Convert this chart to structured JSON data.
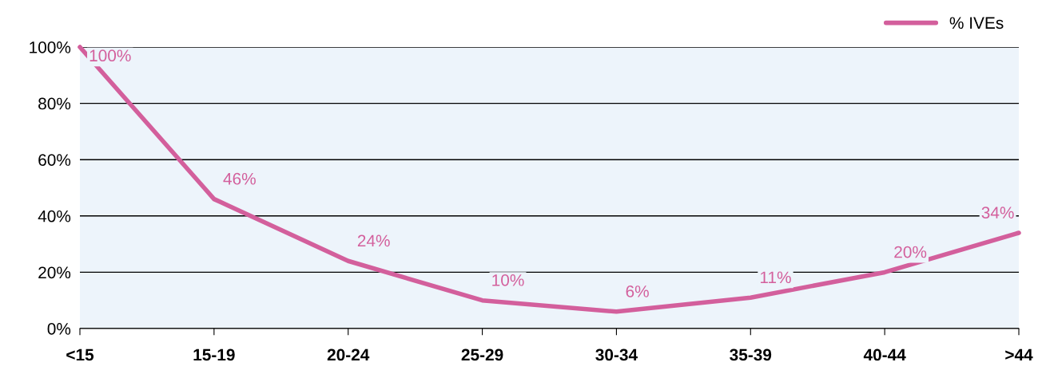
{
  "chart_data": {
    "type": "line",
    "categories": [
      "<15",
      "15-19",
      "20-24",
      "25-29",
      "30-34",
      "35-39",
      "40-44",
      ">44"
    ],
    "series": [
      {
        "name": "% IVEs",
        "color": "#d35f9c",
        "values": [
          100,
          46,
          24,
          10,
          6,
          11,
          20,
          34
        ],
        "value_labels": [
          "100%",
          "46%",
          "24%",
          "10%",
          "6%",
          "11%",
          "20%",
          "34%"
        ]
      }
    ],
    "ylim": [
      0,
      100
    ],
    "yticks": [
      {
        "value": 0,
        "label": "0%"
      },
      {
        "value": 20,
        "label": "20%"
      },
      {
        "value": 40,
        "label": "40%"
      },
      {
        "value": 60,
        "label": "60%"
      },
      {
        "value": 80,
        "label": "80%"
      },
      {
        "value": 100,
        "label": "100%"
      }
    ],
    "grid": "y",
    "legend": "top right",
    "marker": "none",
    "line_style": "solid"
  }
}
